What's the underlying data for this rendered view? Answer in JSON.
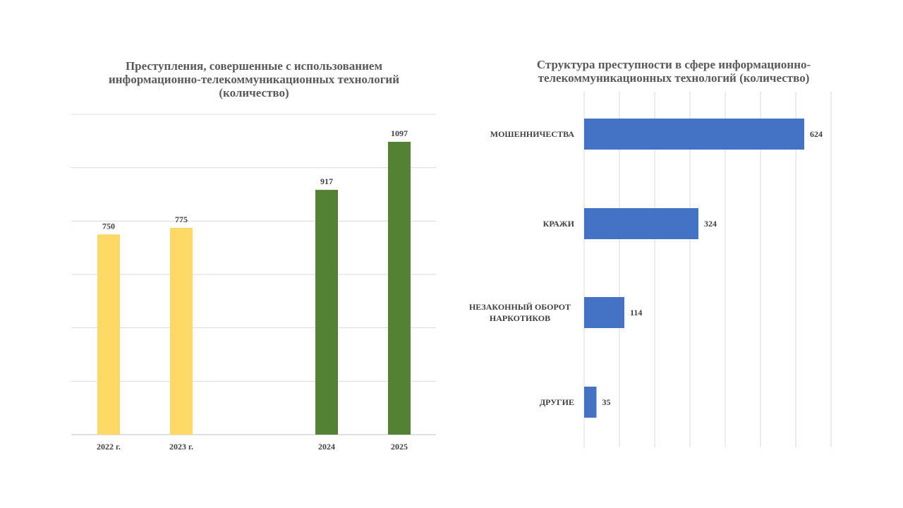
{
  "chart_data": [
    {
      "type": "bar",
      "title": "Преступления, совершенные с использованием информационно-телекоммуникационных технологий (количество)",
      "categories": [
        "2022 г.",
        "2023 г.",
        "2024",
        "2025"
      ],
      "values": [
        750,
        775,
        917,
        1097
      ],
      "colors": [
        "#FFD966",
        "#FFD966",
        "#548235",
        "#548235"
      ],
      "ylim": [
        0,
        1200
      ],
      "grid": true
    },
    {
      "type": "bar",
      "orientation": "horizontal",
      "title": "Структура преступности в сфере информационно-телекоммуникационных технологий (количество)",
      "categories": [
        "МОШЕННИЧЕСТВА",
        "КРАЖИ",
        "НЕЗАКОННЫЙ  ОБОРОТ НАРКОТИКОВ",
        "ДРУГИЕ"
      ],
      "values": [
        624,
        324,
        114,
        35
      ],
      "color": "#4472C4",
      "xlim": [
        0,
        700
      ],
      "grid": true
    }
  ]
}
